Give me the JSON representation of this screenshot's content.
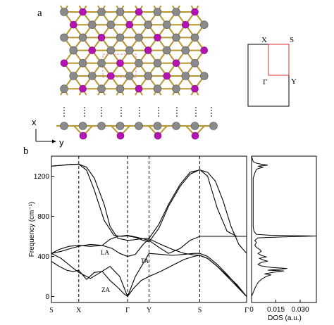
{
  "panels": {
    "a_label": "a",
    "b_label": "b",
    "axis_x": "x",
    "axis_y": "y"
  },
  "bz": {
    "labels": [
      "X",
      "S",
      "Γ",
      "Y"
    ]
  },
  "atoms": {
    "metal_color": "#8a8a8a",
    "nonmetal_color": "#b414b4",
    "bond_color": "#b8962e",
    "cell_color": "#e28aa8"
  },
  "chart_data": [
    {
      "type": "line",
      "title": "",
      "xlabel": "",
      "ylabel": "Frequency (cm⁻¹)",
      "ylim": [
        -60,
        1400
      ],
      "yticks": [
        0,
        400,
        800,
        1200
      ],
      "kpath_labels": [
        "S",
        "X",
        "Γ",
        "Y",
        "S",
        "Γ"
      ],
      "kpath_positions": [
        0,
        0.14,
        0.39,
        0.5,
        0.76,
        1.0
      ],
      "band_labels": [
        "LA",
        "TA",
        "ZA"
      ],
      "series": [
        {
          "x": [
            0,
            0.05,
            0.1,
            0.14,
            0.18,
            0.22,
            0.27,
            0.3,
            0.34,
            0.39,
            0.42,
            0.46,
            0.5,
            0.55,
            0.6,
            0.66,
            0.71,
            0.76,
            0.8,
            0.84,
            0.88,
            0.92,
            0.96,
            1.0
          ],
          "values": [
            1300,
            1308,
            1318,
            1320,
            1290,
            1180,
            920,
            700,
            580,
            560,
            565,
            575,
            580,
            720,
            920,
            1120,
            1240,
            1262,
            1240,
            1150,
            950,
            700,
            520,
            430
          ]
        },
        {
          "x": [
            0,
            0.05,
            0.1,
            0.14,
            0.18,
            0.22,
            0.27,
            0.32,
            0.36,
            0.39,
            0.43,
            0.47,
            0.5,
            0.55,
            0.6,
            0.66,
            0.71,
            0.76,
            0.8,
            0.85,
            0.9,
            0.95,
            1.0
          ],
          "values": [
            1300,
            1308,
            1318,
            1320,
            1260,
            1060,
            760,
            610,
            600,
            605,
            590,
            560,
            545,
            680,
            900,
            1100,
            1220,
            1265,
            1200,
            880,
            650,
            600,
            600
          ]
        },
        {
          "x": [
            0,
            0.04,
            0.09,
            0.14,
            0.2,
            0.26,
            0.3,
            0.34,
            0.39,
            0.44,
            0.5,
            0.55,
            0.6,
            0.66,
            0.71,
            0.76,
            0.8,
            0.85,
            0.9,
            0.95,
            1.0
          ],
          "values": [
            430,
            470,
            500,
            510,
            500,
            510,
            570,
            600,
            610,
            590,
            560,
            490,
            430,
            480,
            560,
            600,
            600,
            600,
            600,
            600,
            600
          ]
        },
        {
          "x": [
            0,
            0.05,
            0.1,
            0.14,
            0.2,
            0.26,
            0.31,
            0.35,
            0.39,
            0.43,
            0.47,
            0.5,
            0.56,
            0.62,
            0.68,
            0.73,
            0.76,
            0.8,
            0.85,
            0.9,
            0.95,
            1.0
          ],
          "values": [
            430,
            450,
            480,
            500,
            520,
            510,
            480,
            430,
            400,
            420,
            520,
            575,
            520,
            470,
            430,
            415,
            410,
            380,
            300,
            210,
            120,
            0
          ]
        },
        {
          "x": [
            0,
            0.05,
            0.1,
            0.14,
            0.2,
            0.25,
            0.3,
            0.35,
            0.39,
            0.43,
            0.47,
            0.5,
            0.56,
            0.62,
            0.68,
            0.73,
            0.76,
            0.8,
            0.85,
            0.9,
            0.95,
            1.0
          ],
          "values": [
            430,
            380,
            300,
            240,
            180,
            240,
            300,
            200,
            0,
            200,
            330,
            430,
            420,
            410,
            420,
            430,
            430,
            400,
            320,
            220,
            110,
            0
          ]
        },
        {
          "x": [
            0,
            0.04,
            0.08,
            0.11,
            0.14,
            0.18,
            0.22,
            0.26,
            0.3,
            0.34,
            0.37,
            0.39
          ],
          "values": [
            350,
            300,
            260,
            250,
            260,
            170,
            240,
            250,
            160,
            90,
            30,
            0
          ]
        },
        {
          "x": [
            0.39,
            0.42,
            0.46,
            0.5,
            0.56,
            0.62,
            0.68,
            0.73,
            0.76,
            0.8,
            0.85,
            0.9,
            0.95,
            1.0
          ],
          "values": [
            0,
            80,
            160,
            200,
            250,
            310,
            370,
            400,
            410,
            380,
            300,
            200,
            100,
            0
          ]
        }
      ]
    },
    {
      "type": "line",
      "title": "",
      "xlabel": "DOS (a.u.)",
      "ylabel": "",
      "xticks": [
        "0",
        "0.015",
        "0.030"
      ],
      "xlim": [
        0,
        0.04
      ],
      "ylim": [
        -60,
        1400
      ],
      "dos_points": [
        [
          0.0,
          -60
        ],
        [
          0.0,
          0
        ],
        [
          0.001,
          40
        ],
        [
          0.002,
          80
        ],
        [
          0.003,
          110
        ],
        [
          0.004,
          140
        ],
        [
          0.006,
          170
        ],
        [
          0.009,
          200
        ],
        [
          0.012,
          215
        ],
        [
          0.008,
          225
        ],
        [
          0.013,
          240
        ],
        [
          0.02,
          255
        ],
        [
          0.01,
          262
        ],
        [
          0.016,
          270
        ],
        [
          0.022,
          280
        ],
        [
          0.012,
          290
        ],
        [
          0.006,
          305
        ],
        [
          0.004,
          320
        ],
        [
          0.006,
          340
        ],
        [
          0.01,
          352
        ],
        [
          0.007,
          365
        ],
        [
          0.005,
          380
        ],
        [
          0.009,
          395
        ],
        [
          0.006,
          410
        ],
        [
          0.004,
          430
        ],
        [
          0.006,
          450
        ],
        [
          0.005,
          470
        ],
        [
          0.003,
          490
        ],
        [
          0.002,
          510
        ],
        [
          0.003,
          540
        ],
        [
          0.002,
          560
        ],
        [
          0.004,
          585
        ],
        [
          0.02,
          595
        ],
        [
          0.04,
          603
        ],
        [
          0.012,
          610
        ],
        [
          0.003,
          620
        ],
        [
          0.0015,
          650
        ],
        [
          0.001,
          700
        ],
        [
          0.001,
          800
        ],
        [
          0.001,
          900
        ],
        [
          0.001,
          1000
        ],
        [
          0.001,
          1100
        ],
        [
          0.001,
          1180
        ],
        [
          0.002,
          1230
        ],
        [
          0.003,
          1270
        ],
        [
          0.007,
          1290
        ],
        [
          0.004,
          1300
        ],
        [
          0.01,
          1310
        ],
        [
          0.006,
          1320
        ],
        [
          0.003,
          1330
        ],
        [
          0.001,
          1345
        ],
        [
          0.0,
          1400
        ]
      ]
    }
  ]
}
